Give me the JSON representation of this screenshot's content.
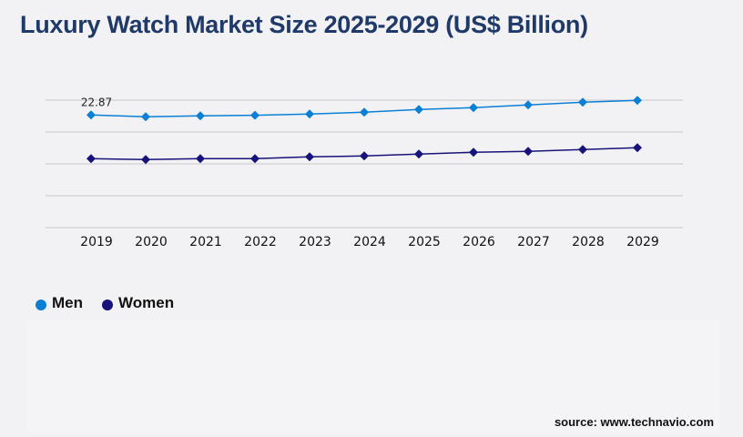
{
  "title": "Luxury Watch Market Size 2025-2029 (US$ Billion)",
  "source": "source: www.technavio.com",
  "chart_data": {
    "type": "line",
    "title": "Luxury Watch Market Size 2025-2029 (US$ Billion)",
    "xlabel": "",
    "ylabel": "",
    "categories": [
      "2019",
      "2020",
      "2021",
      "2022",
      "2023",
      "2024",
      "2025",
      "2026",
      "2027",
      "2028",
      "2029"
    ],
    "ylim": [
      0,
      25.88
    ],
    "grid": true,
    "legend_position": "bottom-left",
    "series": [
      {
        "name": "Men",
        "color": "#0a7fd4",
        "values": [
          22.87,
          22.5,
          22.69,
          22.8,
          23.06,
          23.43,
          23.98,
          24.35,
          24.91,
          25.46,
          25.83
        ]
      },
      {
        "name": "Women",
        "color": "#17137a",
        "values": [
          14.0,
          13.81,
          14.0,
          14.0,
          14.37,
          14.55,
          14.92,
          15.29,
          15.48,
          15.85,
          16.22
        ]
      }
    ],
    "data_labels": [
      {
        "series": "Men",
        "category": "2019",
        "text": "22.87"
      }
    ]
  }
}
